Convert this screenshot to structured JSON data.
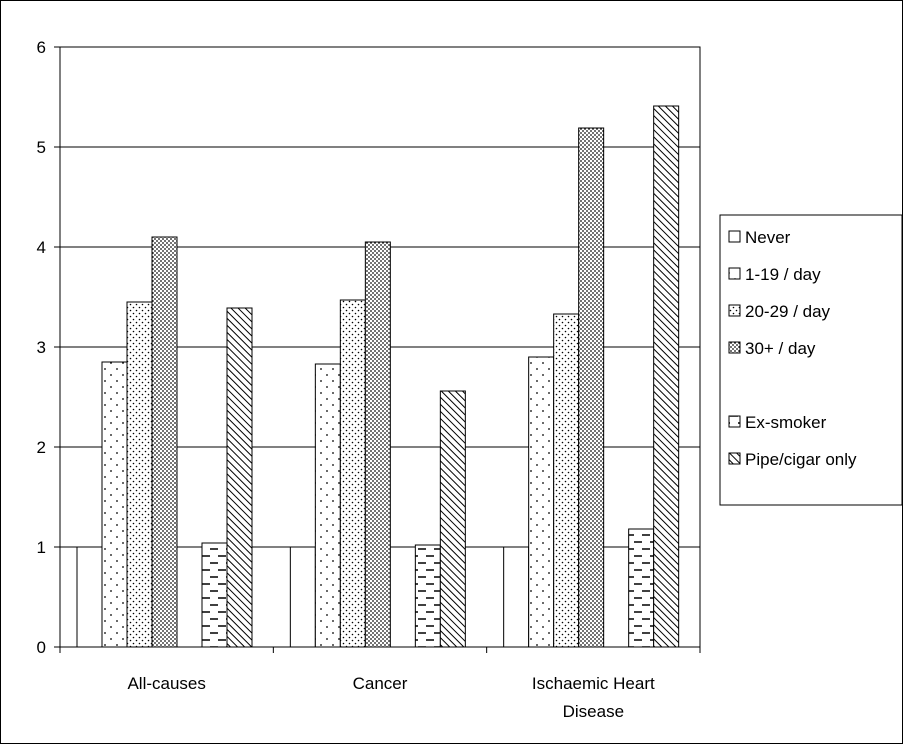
{
  "chart_data": {
    "type": "bar",
    "title": "",
    "xlabel": "",
    "ylabel": "",
    "ylim": [
      0,
      6
    ],
    "yticks": [
      0,
      1,
      2,
      3,
      4,
      5,
      6
    ],
    "grid": true,
    "legend_position": "right",
    "categories": [
      [
        "All-causes"
      ],
      [
        "Cancer"
      ],
      [
        "Ischaemic Heart",
        "Disease"
      ]
    ],
    "series": [
      {
        "name": "Never",
        "pattern": "none",
        "values": [
          1.0,
          1.0,
          1.0
        ]
      },
      {
        "name": "1-19 / day",
        "pattern": "sparse-dots",
        "values": [
          2.85,
          2.83,
          2.9
        ]
      },
      {
        "name": "20-29 / day",
        "pattern": "medium-dots",
        "values": [
          3.45,
          3.47,
          3.33
        ]
      },
      {
        "name": "30+ / day",
        "pattern": "dense-dots",
        "values": [
          4.1,
          4.05,
          5.19
        ]
      },
      {
        "name": "",
        "pattern": "gap",
        "values": [
          null,
          null,
          null
        ]
      },
      {
        "name": "Ex-smoker",
        "pattern": "dashes",
        "values": [
          1.04,
          1.02,
          1.18
        ]
      },
      {
        "name": "Pipe/cigar only",
        "pattern": "diagonal",
        "values": [
          3.39,
          2.56,
          5.41
        ]
      }
    ],
    "colors": {
      "bar_fill": "#ffffff",
      "bar_stroke": "#000000",
      "grid": "#000000",
      "frame": "#000000"
    }
  }
}
